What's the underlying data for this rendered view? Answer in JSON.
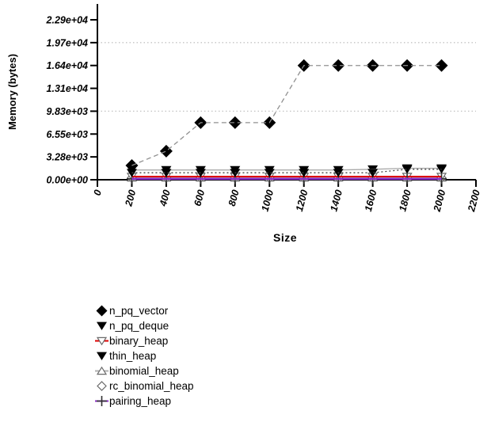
{
  "chart_data": {
    "type": "line",
    "title": "",
    "xlabel": "Size",
    "ylabel": "Memory (bytes)",
    "xlim": [
      0,
      2200
    ],
    "ylim": [
      0,
      22937.6
    ],
    "x_ticks": [
      0,
      200,
      400,
      600,
      800,
      1000,
      1200,
      1400,
      1600,
      1800,
      2000,
      2200
    ],
    "y_ticks": [
      {
        "value": 0,
        "label": "0.00e+00"
      },
      {
        "value": 3276.8,
        "label": "3.28e+03"
      },
      {
        "value": 6553.6,
        "label": "6.55e+03"
      },
      {
        "value": 9830.4,
        "label": "9.83e+03"
      },
      {
        "value": 13107.2,
        "label": "1.31e+04"
      },
      {
        "value": 16384,
        "label": "1.64e+04"
      },
      {
        "value": 19660.8,
        "label": "1.97e+04"
      },
      {
        "value": 22937.6,
        "label": "2.29e+04"
      }
    ],
    "gridlines": [
      9830.4,
      19660.8
    ],
    "grid": "dotted-horizontal-partial",
    "legend_position": "below-left",
    "x": [
      200,
      400,
      600,
      800,
      1000,
      1200,
      1400,
      1600,
      1800,
      2000
    ],
    "series": [
      {
        "name": "n_pq_vector",
        "marker": "diamond-filled",
        "marker_color": "#000000",
        "line_color": "#909090",
        "line_style": "dashed",
        "legend_line": false,
        "values": [
          2048,
          4096,
          8192,
          8192,
          8192,
          16384,
          16384,
          16384,
          16384,
          16384
        ]
      },
      {
        "name": "n_pq_deque",
        "marker": "triangle-down-filled",
        "marker_color": "#000000",
        "line_color": "#404040",
        "line_style": "dotted",
        "legend_line": false,
        "values": [
          1000,
          1000,
          1000,
          1000,
          1000,
          1000,
          1000,
          1000,
          1500,
          1500
        ]
      },
      {
        "name": "binary_heap",
        "marker": "triangle-down-open",
        "marker_color": "#ffffff",
        "line_color": "#dd0000",
        "line_style": "solid",
        "legend_line": true,
        "values": [
          450,
          450,
          450,
          450,
          450,
          450,
          450,
          450,
          450,
          450
        ]
      },
      {
        "name": "thin_heap",
        "marker": "triangle-down-filled",
        "marker_color": "#000000",
        "line_color": "#a8a8a8",
        "line_style": "solid",
        "legend_line": false,
        "values": [
          1400,
          1400,
          1400,
          1400,
          1400,
          1400,
          1400,
          1500,
          1650,
          1650
        ]
      },
      {
        "name": "binomial_heap",
        "marker": "triangle-up-open",
        "marker_color": "#ffffff",
        "line_color": "#b0b0b0",
        "line_style": "solid",
        "legend_line": true,
        "values": [
          280,
          280,
          280,
          280,
          280,
          280,
          280,
          280,
          280,
          280
        ]
      },
      {
        "name": "rc_binomial_heap",
        "marker": "diamond-open",
        "marker_color": "#ffffff",
        "line_color": "#b0b0b0",
        "line_style": "none",
        "legend_line": false,
        "values": [
          280,
          280,
          280,
          280,
          280,
          280,
          280,
          280,
          280,
          280
        ]
      },
      {
        "name": "pairing_heap",
        "marker": "plus",
        "marker_color": "#303030",
        "line_color": "#8b28c8",
        "line_style": "solid",
        "legend_line": true,
        "values": [
          130,
          130,
          130,
          130,
          130,
          130,
          130,
          130,
          130,
          130
        ]
      }
    ]
  }
}
